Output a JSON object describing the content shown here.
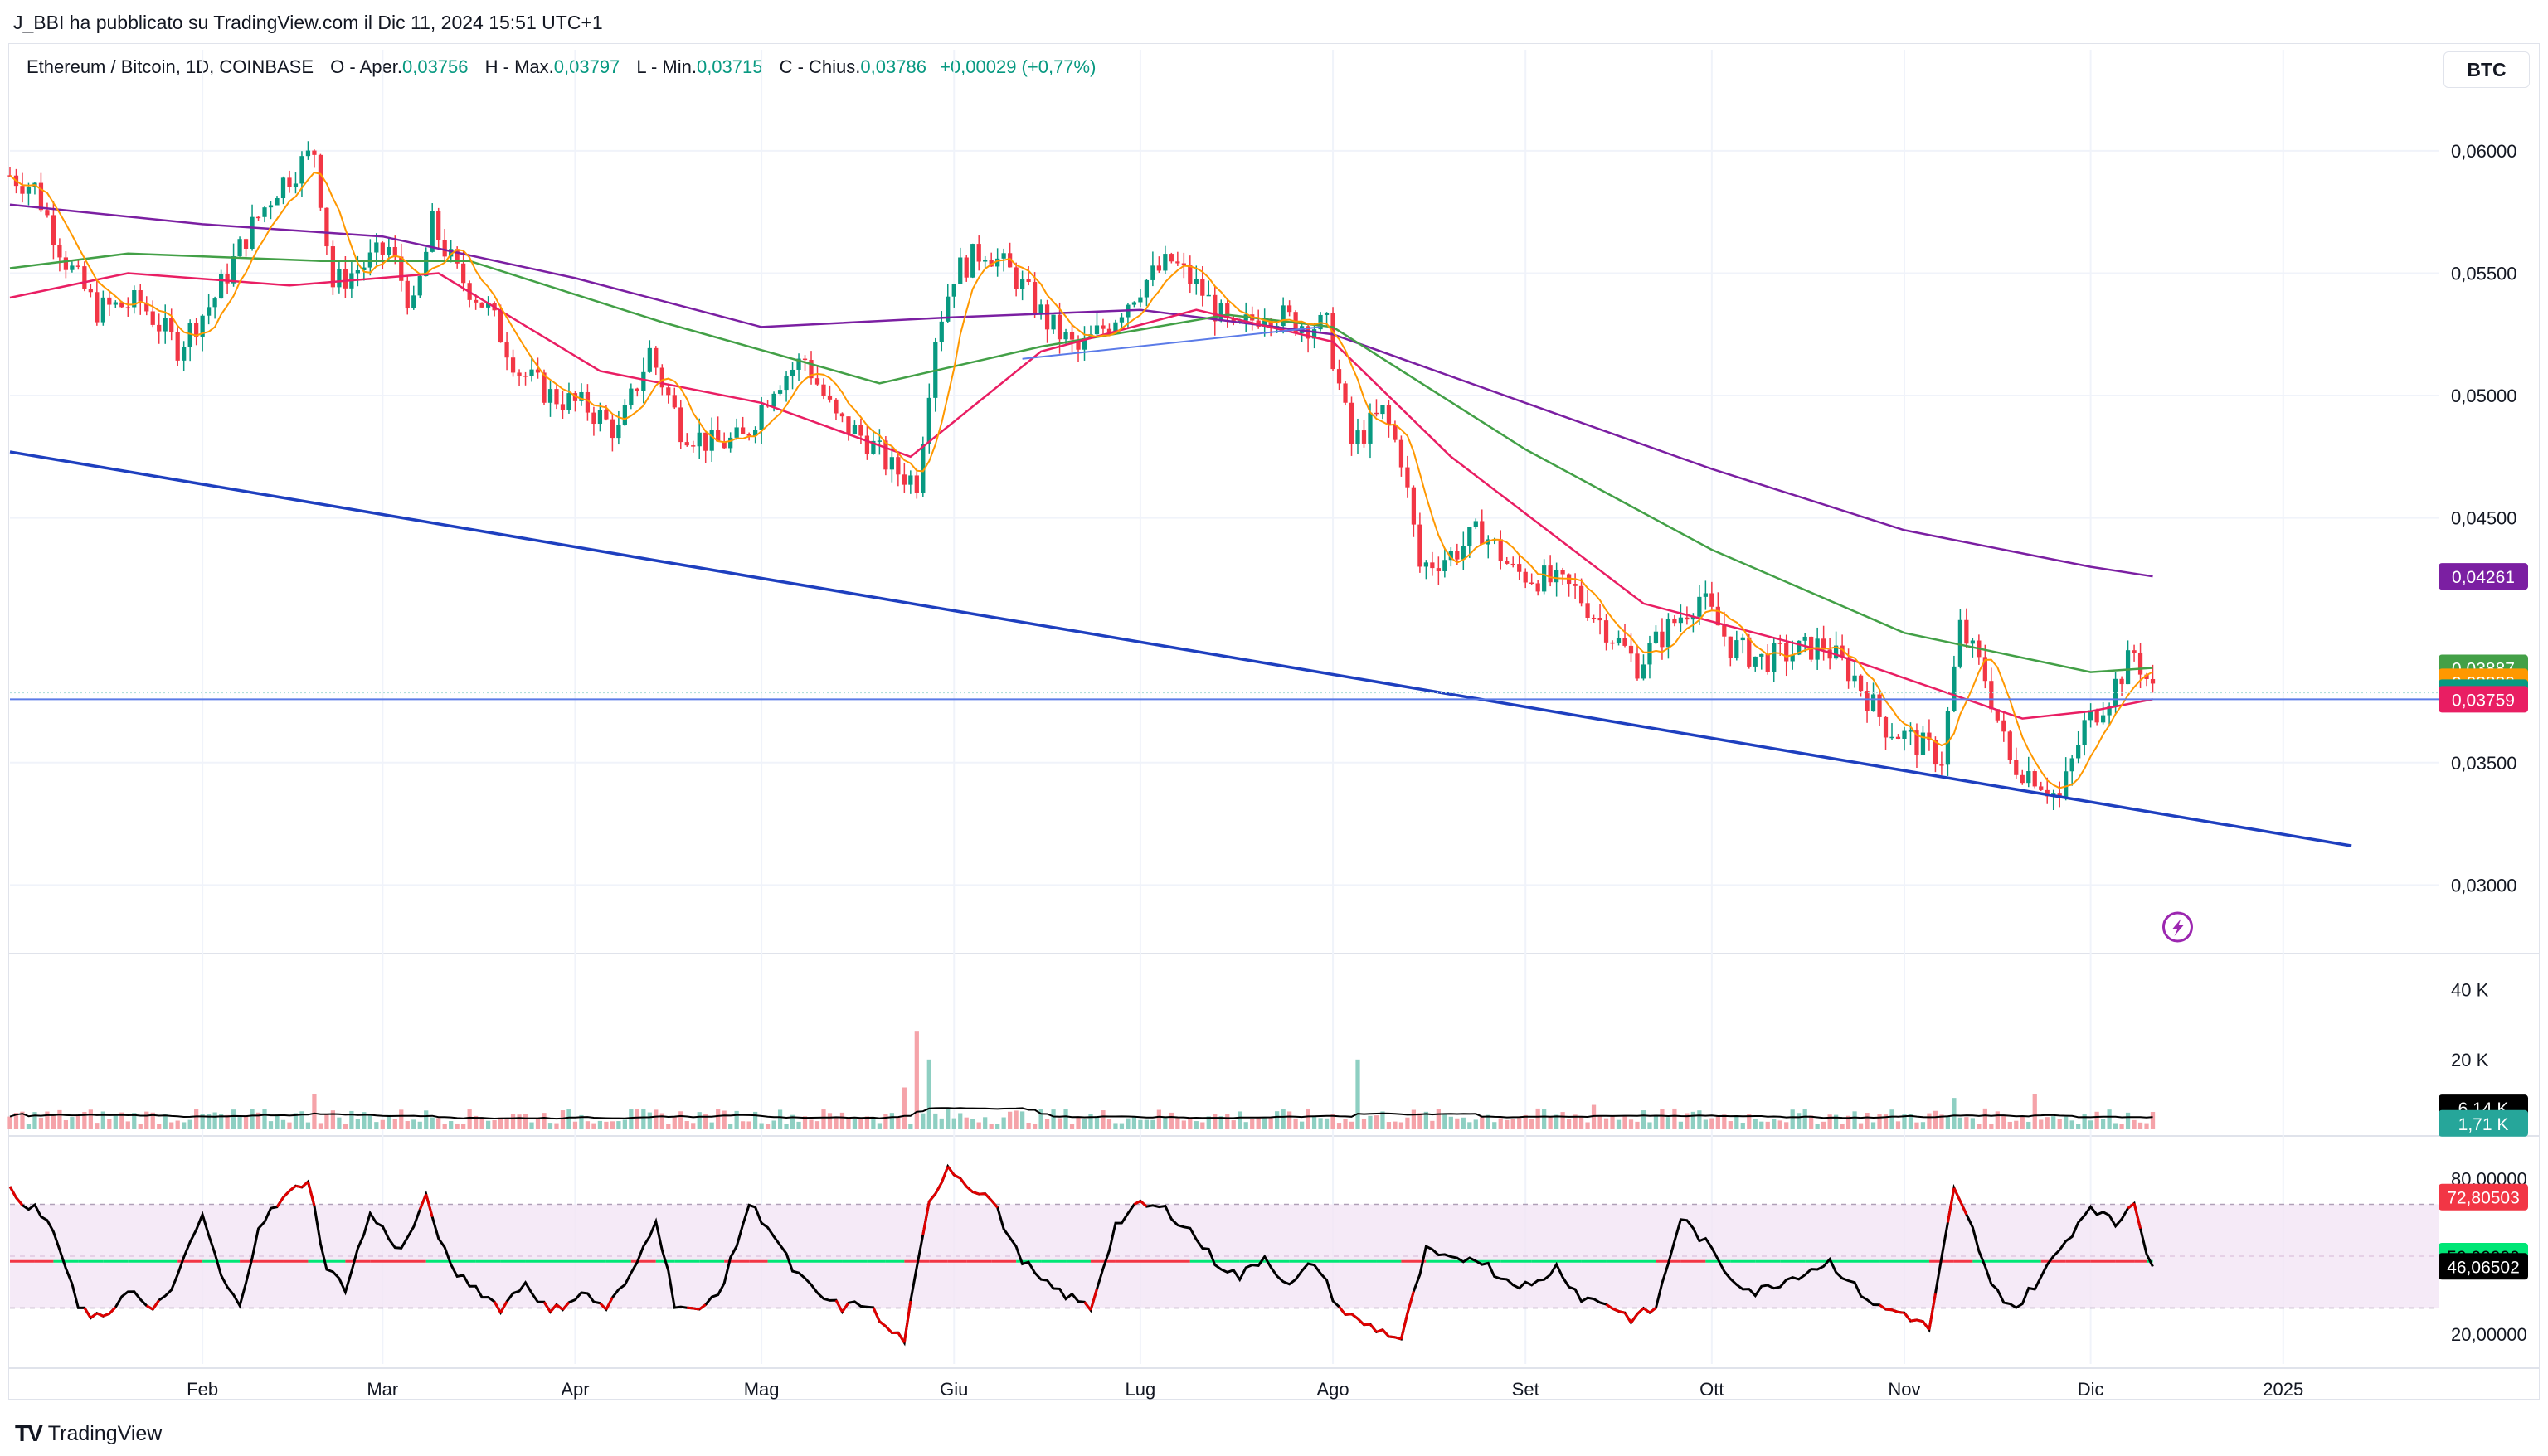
{
  "header": {
    "publisher": "J_BBI ha pubblicato su TradingView.com il Dic 11, 2024 15:51 UTC+1",
    "symbol": "Ethereum / Bitcoin, 1D, COINBASE",
    "open_label": "O - Aper.",
    "open": "0,03756",
    "high_label": "H - Max.",
    "high": "0,03797",
    "low_label": "L - Min.",
    "low": "0,03715",
    "close_label": "C - Chius.",
    "close": "0,03786",
    "change": "+0,00029 (+0,77%)"
  },
  "currency_button": "BTC",
  "brand": {
    "logo": "TV",
    "name": "TradingView"
  },
  "colors": {
    "up": "#089981",
    "down": "#f23645",
    "ma_fast": "#ff9800",
    "ma_red": "#e91e63",
    "ma_green": "#43a047",
    "ma_purple": "#7b1fa2",
    "trendline": "#1e3fbf",
    "hline": "#5b7be8"
  },
  "chart_data": [
    {
      "type": "candlestick",
      "title": "Ethereum / Bitcoin, 1D, COINBASE",
      "x_range": [
        "2024-01-01",
        "2025-01-26"
      ],
      "ylim": [
        0.0272,
        0.0644
      ],
      "x_ticks": [
        {
          "label": "Feb",
          "date": "2024-02-01"
        },
        {
          "label": "Mar",
          "date": "2024-03-01"
        },
        {
          "label": "Apr",
          "date": "2024-04-01"
        },
        {
          "label": "Mag",
          "date": "2024-05-01"
        },
        {
          "label": "Giu",
          "date": "2024-06-01"
        },
        {
          "label": "Lug",
          "date": "2024-07-01"
        },
        {
          "label": "Ago",
          "date": "2024-08-01"
        },
        {
          "label": "Set",
          "date": "2024-09-01"
        },
        {
          "label": "Ott",
          "date": "2024-10-01"
        },
        {
          "label": "Nov",
          "date": "2024-11-01"
        },
        {
          "label": "Dic",
          "date": "2024-12-01"
        },
        {
          "label": "2025",
          "date": "2025-01-01"
        }
      ],
      "y_ticks": [
        {
          "label": "0,06000",
          "value": 0.06
        },
        {
          "label": "0,05500",
          "value": 0.055
        },
        {
          "label": "0,05000",
          "value": 0.05
        },
        {
          "label": "0,04500",
          "value": 0.045
        },
        {
          "label": "0,03500",
          "value": 0.035
        },
        {
          "label": "0,03000",
          "value": 0.03
        }
      ],
      "close_path": [
        [
          "2024-01-01",
          0.059
        ],
        [
          "2024-01-05",
          0.0585
        ],
        [
          "2024-01-10",
          0.0555
        ],
        [
          "2024-01-15",
          0.0535
        ],
        [
          "2024-01-22",
          0.0538
        ],
        [
          "2024-01-28",
          0.052
        ],
        [
          "2024-02-03",
          0.054
        ],
        [
          "2024-02-08",
          0.0565
        ],
        [
          "2024-02-13",
          0.0585
        ],
        [
          "2024-02-19",
          0.06
        ],
        [
          "2024-02-22",
          0.0545
        ],
        [
          "2024-03-02",
          0.056
        ],
        [
          "2024-03-06",
          0.0535
        ],
        [
          "2024-03-09",
          0.057
        ],
        [
          "2024-03-13",
          0.055
        ],
        [
          "2024-03-18",
          0.0535
        ],
        [
          "2024-03-23",
          0.051
        ],
        [
          "2024-03-28",
          0.05
        ],
        [
          "2024-04-03",
          0.0495
        ],
        [
          "2024-04-08",
          0.0485
        ],
        [
          "2024-04-13",
          0.0518
        ],
        [
          "2024-04-18",
          0.0487
        ],
        [
          "2024-04-23",
          0.048
        ],
        [
          "2024-04-28",
          0.0482
        ],
        [
          "2024-05-03",
          0.0505
        ],
        [
          "2024-05-08",
          0.0515
        ],
        [
          "2024-05-13",
          0.049
        ],
        [
          "2024-05-18",
          0.0482
        ],
        [
          "2024-05-22",
          0.047
        ],
        [
          "2024-05-26",
          0.0465
        ],
        [
          "2024-05-29",
          0.0525
        ],
        [
          "2024-06-01",
          0.055
        ],
        [
          "2024-06-06",
          0.056
        ],
        [
          "2024-06-11",
          0.0548
        ],
        [
          "2024-06-16",
          0.053
        ],
        [
          "2024-06-21",
          0.0518
        ],
        [
          "2024-06-26",
          0.053
        ],
        [
          "2024-07-01",
          0.0545
        ],
        [
          "2024-07-06",
          0.0555
        ],
        [
          "2024-07-11",
          0.0542
        ],
        [
          "2024-07-16",
          0.0525
        ],
        [
          "2024-07-21",
          0.0535
        ],
        [
          "2024-07-26",
          0.053
        ],
        [
          "2024-07-31",
          0.0528
        ],
        [
          "2024-08-04",
          0.048
        ],
        [
          "2024-08-09",
          0.0493
        ],
        [
          "2024-08-12",
          0.0475
        ],
        [
          "2024-08-15",
          0.043
        ],
        [
          "2024-08-20",
          0.0435
        ],
        [
          "2024-08-25",
          0.0445
        ],
        [
          "2024-08-30",
          0.0428
        ],
        [
          "2024-09-04",
          0.0425
        ],
        [
          "2024-09-09",
          0.042
        ],
        [
          "2024-09-14",
          0.0405
        ],
        [
          "2024-09-19",
          0.039
        ],
        [
          "2024-09-24",
          0.0405
        ],
        [
          "2024-09-29",
          0.0418
        ],
        [
          "2024-10-04",
          0.0398
        ],
        [
          "2024-10-09",
          0.0392
        ],
        [
          "2024-10-14",
          0.0395
        ],
        [
          "2024-10-19",
          0.0398
        ],
        [
          "2024-10-24",
          0.0385
        ],
        [
          "2024-10-29",
          0.0365
        ],
        [
          "2024-11-03",
          0.0358
        ],
        [
          "2024-11-07",
          0.0352
        ],
        [
          "2024-11-10",
          0.0405
        ],
        [
          "2024-11-14",
          0.0385
        ],
        [
          "2024-11-18",
          0.035
        ],
        [
          "2024-11-22",
          0.0345
        ],
        [
          "2024-11-26",
          0.0335
        ],
        [
          "2024-11-30",
          0.0365
        ],
        [
          "2024-12-04",
          0.0378
        ],
        [
          "2024-12-08",
          0.0395
        ],
        [
          "2024-12-11",
          0.0379
        ]
      ],
      "series": [
        {
          "name": "",
          "color": "#7b1fa2",
          "last_label": "0,04261",
          "last": 0.04261,
          "points": [
            [
              "2024-01-01",
              0.0578
            ],
            [
              "2024-02-01",
              0.057
            ],
            [
              "2024-03-01",
              0.0565
            ],
            [
              "2024-04-01",
              0.0548
            ],
            [
              "2024-05-01",
              0.0528
            ],
            [
              "2024-06-01",
              0.0532
            ],
            [
              "2024-07-01",
              0.0535
            ],
            [
              "2024-08-01",
              0.0525
            ],
            [
              "2024-09-01",
              0.0497
            ],
            [
              "2024-10-01",
              0.047
            ],
            [
              "2024-11-01",
              0.0445
            ],
            [
              "2024-12-01",
              0.043
            ],
            [
              "2024-12-11",
              0.04261
            ]
          ]
        },
        {
          "name": "",
          "color": "#43a047",
          "last_label": "0,03887",
          "last": 0.03887,
          "points": [
            [
              "2024-01-01",
              0.0552
            ],
            [
              "2024-01-20",
              0.0558
            ],
            [
              "2024-02-20",
              0.0555
            ],
            [
              "2024-03-15",
              0.0555
            ],
            [
              "2024-04-15",
              0.053
            ],
            [
              "2024-05-20",
              0.0505
            ],
            [
              "2024-06-15",
              0.052
            ],
            [
              "2024-07-15",
              0.0533
            ],
            [
              "2024-08-01",
              0.0528
            ],
            [
              "2024-09-01",
              0.0478
            ],
            [
              "2024-10-01",
              0.0437
            ],
            [
              "2024-11-01",
              0.0403
            ],
            [
              "2024-12-01",
              0.0387
            ],
            [
              "2024-12-11",
              0.03887
            ]
          ]
        },
        {
          "name": "",
          "color": "#e91e63",
          "last_label": "0,03759",
          "last": 0.03759,
          "points": [
            [
              "2024-01-01",
              0.054
            ],
            [
              "2024-01-20",
              0.055
            ],
            [
              "2024-02-15",
              0.0545
            ],
            [
              "2024-03-10",
              0.055
            ],
            [
              "2024-04-05",
              0.051
            ],
            [
              "2024-05-01",
              0.0497
            ],
            [
              "2024-05-25",
              0.0475
            ],
            [
              "2024-06-15",
              0.0518
            ],
            [
              "2024-07-10",
              0.0535
            ],
            [
              "2024-08-01",
              0.0522
            ],
            [
              "2024-08-20",
              0.0475
            ],
            [
              "2024-09-20",
              0.0415
            ],
            [
              "2024-10-20",
              0.0395
            ],
            [
              "2024-11-20",
              0.0368
            ],
            [
              "2024-12-01",
              0.0371
            ],
            [
              "2024-12-11",
              0.03759
            ]
          ]
        },
        {
          "name": "",
          "color": "#ff9800",
          "last_label": "0,03830",
          "last": 0.0383,
          "source": "close_path_fast"
        }
      ],
      "price_label": {
        "text": "0,03786",
        "value": 0.03786,
        "color": "#089981"
      },
      "horizontal_line": {
        "value": 0.03759
      },
      "trendlines": [
        {
          "from": [
            "2024-01-01",
            0.0477
          ],
          "to": [
            "2025-01-12",
            0.0316
          ],
          "color": "#1e3fbf"
        },
        {
          "from": [
            "2024-06-12",
            0.0515
          ],
          "to": [
            "2024-07-30",
            0.0528
          ],
          "color": "#5b7be8"
        }
      ]
    },
    {
      "type": "bar",
      "title": "Volume",
      "ylim": [
        0,
        48000
      ],
      "y_ticks": [
        {
          "label": "40 K",
          "value": 40000
        },
        {
          "label": "20 K",
          "value": 20000
        }
      ],
      "ma_label": "6,14 K",
      "ma_last": 6140,
      "last_label": "1,71 K",
      "last": 1710,
      "spikes": [
        [
          "2024-05-26",
          28000
        ],
        [
          "2024-05-28",
          20000
        ],
        [
          "2024-05-24",
          12000
        ],
        [
          "2024-08-05",
          20000
        ],
        [
          "2024-02-19",
          10000
        ],
        [
          "2024-11-09",
          9000
        ],
        [
          "2024-11-22",
          10000
        ],
        [
          "2024-09-12",
          7000
        ]
      ]
    },
    {
      "type": "line",
      "title": "RSI",
      "ylim": [
        10,
        90
      ],
      "y_ticks": [
        {
          "label": "80,00000",
          "value": 80
        },
        {
          "label": "20,00000",
          "value": 20
        }
      ],
      "bands": [
        30,
        70
      ],
      "levels": [
        {
          "label": "72,80503",
          "value": 72.80503,
          "color": "#f23645"
        },
        {
          "label": "50,00000",
          "value": 50,
          "color": "#00e676"
        },
        {
          "label": "46,06502",
          "value": 46.06502,
          "color": "#000000"
        }
      ],
      "points": [
        [
          "2024-01-01",
          75
        ],
        [
          "2024-01-05",
          68
        ],
        [
          "2024-01-08",
          60
        ],
        [
          "2024-01-12",
          30
        ],
        [
          "2024-01-16",
          25
        ],
        [
          "2024-01-20",
          38
        ],
        [
          "2024-01-24",
          28
        ],
        [
          "2024-01-28",
          42
        ],
        [
          "2024-02-01",
          66
        ],
        [
          "2024-02-04",
          42
        ],
        [
          "2024-02-07",
          30
        ],
        [
          "2024-02-10",
          62
        ],
        [
          "2024-02-14",
          72
        ],
        [
          "2024-02-18",
          80
        ],
        [
          "2024-02-21",
          45
        ],
        [
          "2024-02-24",
          38
        ],
        [
          "2024-02-28",
          66
        ],
        [
          "2024-03-04",
          52
        ],
        [
          "2024-03-08",
          72
        ],
        [
          "2024-03-12",
          45
        ],
        [
          "2024-03-16",
          38
        ],
        [
          "2024-03-20",
          30
        ],
        [
          "2024-03-24",
          40
        ],
        [
          "2024-03-28",
          28
        ],
        [
          "2024-04-02",
          36
        ],
        [
          "2024-04-06",
          30
        ],
        [
          "2024-04-10",
          42
        ],
        [
          "2024-04-14",
          65
        ],
        [
          "2024-04-17",
          32
        ],
        [
          "2024-04-21",
          28
        ],
        [
          "2024-04-25",
          40
        ],
        [
          "2024-04-29",
          70
        ],
        [
          "2024-05-02",
          62
        ],
        [
          "2024-05-06",
          45
        ],
        [
          "2024-05-10",
          35
        ],
        [
          "2024-05-14",
          30
        ],
        [
          "2024-05-18",
          32
        ],
        [
          "2024-05-21",
          22
        ],
        [
          "2024-05-24",
          18
        ],
        [
          "2024-05-28",
          70
        ],
        [
          "2024-05-31",
          85
        ],
        [
          "2024-06-03",
          78
        ],
        [
          "2024-06-07",
          72
        ],
        [
          "2024-06-11",
          52
        ],
        [
          "2024-06-15",
          40
        ],
        [
          "2024-06-19",
          35
        ],
        [
          "2024-06-23",
          30
        ],
        [
          "2024-06-27",
          62
        ],
        [
          "2024-07-01",
          70
        ],
        [
          "2024-07-05",
          68
        ],
        [
          "2024-07-09",
          60
        ],
        [
          "2024-07-13",
          48
        ],
        [
          "2024-07-17",
          42
        ],
        [
          "2024-07-21",
          50
        ],
        [
          "2024-07-25",
          38
        ],
        [
          "2024-07-29",
          48
        ],
        [
          "2024-08-02",
          30
        ],
        [
          "2024-08-05",
          25
        ],
        [
          "2024-08-08",
          22
        ],
        [
          "2024-08-12",
          18
        ],
        [
          "2024-08-16",
          52
        ],
        [
          "2024-08-20",
          48
        ],
        [
          "2024-08-24",
          50
        ],
        [
          "2024-08-28",
          42
        ],
        [
          "2024-09-02",
          38
        ],
        [
          "2024-09-06",
          46
        ],
        [
          "2024-09-10",
          34
        ],
        [
          "2024-09-14",
          32
        ],
        [
          "2024-09-18",
          26
        ],
        [
          "2024-09-22",
          30
        ],
        [
          "2024-09-26",
          65
        ],
        [
          "2024-09-30",
          55
        ],
        [
          "2024-10-04",
          42
        ],
        [
          "2024-10-08",
          36
        ],
        [
          "2024-10-12",
          40
        ],
        [
          "2024-10-16",
          44
        ],
        [
          "2024-10-20",
          48
        ],
        [
          "2024-10-24",
          38
        ],
        [
          "2024-10-28",
          30
        ],
        [
          "2024-11-01",
          28
        ],
        [
          "2024-11-05",
          22
        ],
        [
          "2024-11-09",
          75
        ],
        [
          "2024-11-12",
          60
        ],
        [
          "2024-11-15",
          38
        ],
        [
          "2024-11-19",
          30
        ],
        [
          "2024-11-23",
          42
        ],
        [
          "2024-11-27",
          56
        ],
        [
          "2024-12-01",
          70
        ],
        [
          "2024-12-05",
          62
        ],
        [
          "2024-12-08",
          72
        ],
        [
          "2024-12-10",
          52
        ],
        [
          "2024-12-11",
          46
        ]
      ]
    }
  ]
}
